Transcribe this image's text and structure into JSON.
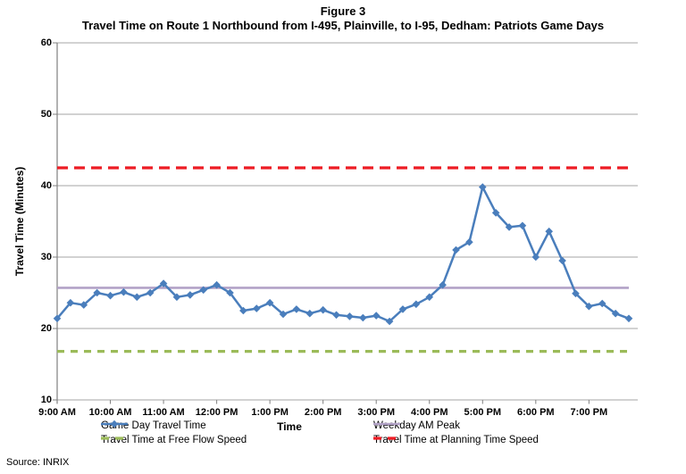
{
  "figure": {
    "title": "Figure 3",
    "subtitle": "Travel Time on Route 1 Northbound from I-495, Plainville, to I-95, Dedham: Patriots Game Days",
    "source": "Source: INRIX"
  },
  "chart_data": {
    "type": "line",
    "title": "Figure 3",
    "subtitle": "Travel Time on Route 1 Northbound from I-495, Plainville, to I-95, Dedham: Patriots Game Days",
    "xlabel": "Time",
    "ylabel": "Travel Time (Minutes)",
    "ylim": [
      10,
      60
    ],
    "ytick_labels": [
      "10",
      "20",
      "30",
      "40",
      "50",
      "60"
    ],
    "xtick_labels": [
      "9:00 AM",
      "10:00 AM",
      "11:00 AM",
      "12:00 PM",
      "1:00 PM",
      "2:00 PM",
      "3:00 PM",
      "4:00 PM",
      "5:00 PM",
      "6:00 PM",
      "7:00 PM"
    ],
    "grid": "horizontal",
    "legend_position": "bottom-two-columns",
    "x": [
      "9:00 AM",
      "9:15 AM",
      "9:30 AM",
      "9:45 AM",
      "10:00 AM",
      "10:15 AM",
      "10:30 AM",
      "10:45 AM",
      "11:00 AM",
      "11:15 AM",
      "11:30 AM",
      "11:45 AM",
      "12:00 PM",
      "12:15 PM",
      "12:30 PM",
      "12:45 PM",
      "1:00 PM",
      "1:15 PM",
      "1:30 PM",
      "1:45 PM",
      "2:00 PM",
      "2:15 PM",
      "2:30 PM",
      "2:45 PM",
      "3:00 PM",
      "3:15 PM",
      "3:30 PM",
      "3:45 PM",
      "4:00 PM",
      "4:15 PM",
      "4:30 PM",
      "4:45 PM",
      "5:00 PM",
      "5:15 PM",
      "5:30 PM",
      "5:45 PM",
      "6:00 PM",
      "6:15 PM",
      "6:30 PM",
      "6:45 PM",
      "7:00 PM",
      "7:15 PM",
      "7:30 PM",
      "7:45 PM"
    ],
    "series": [
      {
        "name": "Game Day Travel Time",
        "type": "line",
        "marker": "diamond",
        "swatch": "line-diamond",
        "color": "#4a7ebc",
        "values": [
          21.4,
          23.6,
          23.3,
          25.0,
          24.6,
          25.1,
          24.4,
          25.0,
          26.3,
          24.4,
          24.7,
          25.4,
          26.1,
          25.0,
          22.5,
          22.8,
          23.6,
          22.0,
          22.7,
          22.1,
          22.6,
          21.9,
          21.7,
          21.5,
          21.8,
          21.0,
          22.7,
          23.4,
          24.4,
          26.1,
          31.0,
          32.1,
          39.8,
          36.2,
          34.2,
          34.4,
          30.0,
          33.6,
          29.5,
          24.9,
          23.1,
          23.5,
          22.1,
          21.4
        ]
      },
      {
        "name": "Weekday AM Peak",
        "type": "constant-line",
        "style": "solid",
        "swatch": "line",
        "color": "#b2a2c7",
        "value": 25.7
      },
      {
        "name": "Travel Time at Free Flow Speed",
        "type": "constant-line",
        "style": "dashed",
        "swatch": "dashes",
        "color": "#9bbb59",
        "value": 16.8
      },
      {
        "name": "Travel Time at Planning Time Speed",
        "type": "constant-line",
        "style": "dashed",
        "swatch": "dashes",
        "color": "#ed1c24",
        "value": 42.5
      }
    ],
    "colors": {
      "gridline": "#a6a6a6",
      "axis": "#808080"
    }
  }
}
